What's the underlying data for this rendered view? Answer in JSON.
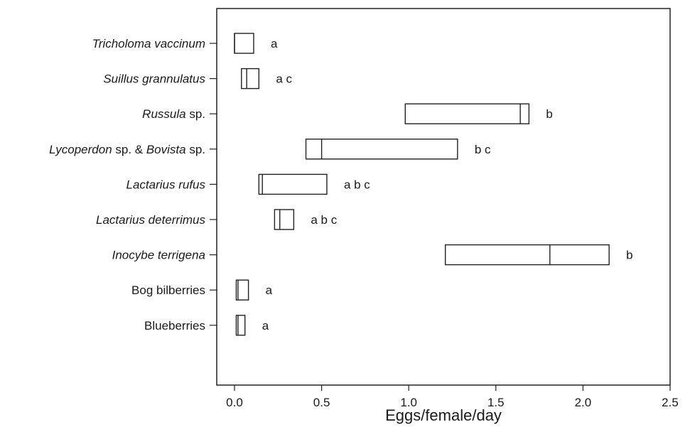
{
  "chart_data": {
    "type": "box",
    "xlabel": "Eggs/female/day",
    "xlim": [
      -0.1,
      2.5
    ],
    "xticks": [
      "0.0",
      "0.5",
      "1.0",
      "1.5",
      "2.0",
      "2.5"
    ],
    "xtick_values": [
      0.0,
      0.5,
      1.0,
      1.5,
      2.0,
      2.5
    ],
    "grid": false,
    "categories": [
      {
        "parts": [
          {
            "text": "Tricholoma vaccinum",
            "italic": true
          }
        ],
        "low": 0.0,
        "median": 0.0,
        "high": 0.11,
        "group": "a"
      },
      {
        "parts": [
          {
            "text": "Suillus grannulatus",
            "italic": true
          }
        ],
        "low": 0.04,
        "median": 0.07,
        "high": 0.14,
        "group": "a c"
      },
      {
        "parts": [
          {
            "text": "Russula",
            "italic": true
          },
          {
            "text": " sp.",
            "italic": false
          }
        ],
        "low": 0.98,
        "median": 1.64,
        "high": 1.69,
        "group": "b"
      },
      {
        "parts": [
          {
            "text": "Lycoperdon",
            "italic": true
          },
          {
            "text": " sp. & ",
            "italic": false
          },
          {
            "text": "Bovista",
            "italic": true
          },
          {
            "text": " sp.",
            "italic": false
          }
        ],
        "low": 0.41,
        "median": 0.5,
        "high": 1.28,
        "group": "b c"
      },
      {
        "parts": [
          {
            "text": "Lactarius rufus",
            "italic": true
          }
        ],
        "low": 0.14,
        "median": 0.16,
        "high": 0.53,
        "group": "a b c"
      },
      {
        "parts": [
          {
            "text": "Lactarius deterrimus",
            "italic": true
          }
        ],
        "low": 0.23,
        "median": 0.26,
        "high": 0.34,
        "group": "a b c"
      },
      {
        "parts": [
          {
            "text": "Inocybe terrigena",
            "italic": true
          }
        ],
        "low": 1.21,
        "median": 1.81,
        "high": 2.15,
        "group": "b"
      },
      {
        "parts": [
          {
            "text": "Bog bilberries",
            "italic": false
          }
        ],
        "low": 0.01,
        "median": 0.02,
        "high": 0.08,
        "group": "a"
      },
      {
        "parts": [
          {
            "text": "Blueberries",
            "italic": false
          }
        ],
        "low": 0.01,
        "median": 0.02,
        "high": 0.06,
        "group": "a"
      }
    ]
  }
}
